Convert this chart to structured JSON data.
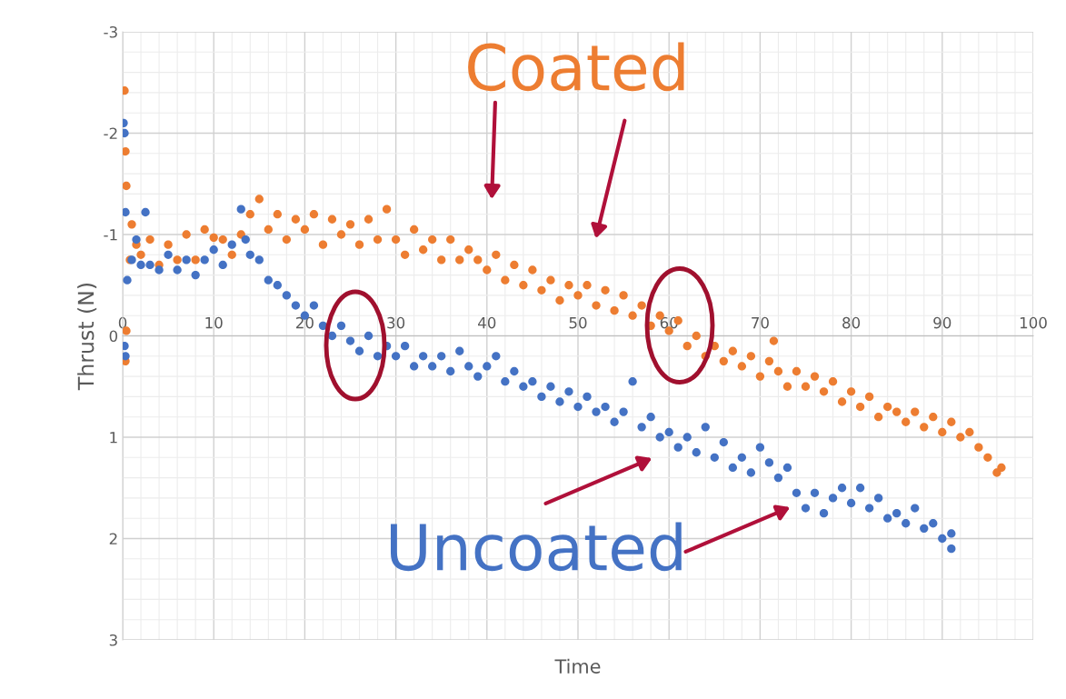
{
  "chart_data": {
    "type": "scatter",
    "xlabel": "Time",
    "ylabel": "Thrust (N)",
    "xlim": [
      0,
      100
    ],
    "xticks": [
      0,
      10,
      20,
      30,
      40,
      50,
      60,
      70,
      80,
      90,
      100
    ],
    "ylim": [
      3,
      -3
    ],
    "yticks": [
      -3,
      -2,
      -1,
      0,
      1,
      2,
      3
    ],
    "grid": true,
    "legend": false,
    "marker": "circle",
    "series": [
      {
        "name": "Coated",
        "color": "#ed7d31",
        "x": [
          0.2,
          0.3,
          0.4,
          0.3,
          0.4,
          0.8,
          1,
          1.5,
          2,
          3,
          4,
          5,
          6,
          7,
          8,
          9,
          10,
          11,
          12,
          13,
          14,
          15,
          16,
          17,
          18,
          19,
          20,
          21,
          22,
          23,
          24,
          25,
          26,
          27,
          28,
          29,
          30,
          31,
          32,
          33,
          34,
          35,
          36,
          37,
          38,
          39,
          40,
          41,
          42,
          43,
          44,
          45,
          46,
          47,
          48,
          49,
          50,
          51,
          52,
          53,
          54,
          55,
          56,
          57,
          58,
          59,
          60,
          61,
          62,
          63,
          64,
          65,
          66,
          67,
          68,
          69,
          70,
          71,
          72,
          73,
          74,
          75,
          76,
          77,
          78,
          79,
          80,
          81,
          82,
          83,
          84,
          85,
          86,
          87,
          88,
          89,
          90,
          91,
          92,
          93,
          94,
          95,
          96,
          96.5,
          71.5
        ],
        "values": [
          -2.42,
          -1.82,
          -1.48,
          0.25,
          -0.05,
          -0.75,
          -1.1,
          -0.9,
          -0.8,
          -0.95,
          -0.7,
          -0.9,
          -0.75,
          -1.0,
          -0.75,
          -1.05,
          -0.97,
          -0.95,
          -0.8,
          -1.0,
          -1.2,
          -1.35,
          -1.05,
          -1.2,
          -0.95,
          -1.15,
          -1.05,
          -1.2,
          -0.9,
          -1.15,
          -1.0,
          -1.1,
          -0.9,
          -1.15,
          -0.95,
          -1.25,
          -0.95,
          -0.8,
          -1.05,
          -0.85,
          -0.95,
          -0.75,
          -0.95,
          -0.75,
          -0.85,
          -0.75,
          -0.65,
          -0.8,
          -0.55,
          -0.7,
          -0.5,
          -0.65,
          -0.45,
          -0.55,
          -0.35,
          -0.5,
          -0.4,
          -0.5,
          -0.3,
          -0.45,
          -0.25,
          -0.4,
          -0.2,
          -0.3,
          -0.1,
          -0.2,
          -0.05,
          -0.15,
          0.1,
          0.0,
          0.2,
          0.1,
          0.25,
          0.15,
          0.3,
          0.2,
          0.4,
          0.25,
          0.35,
          0.5,
          0.35,
          0.5,
          0.4,
          0.55,
          0.45,
          0.65,
          0.55,
          0.7,
          0.6,
          0.8,
          0.7,
          0.75,
          0.85,
          0.75,
          0.9,
          0.8,
          0.95,
          0.85,
          1.0,
          0.95,
          1.1,
          1.2,
          1.35,
          1.3,
          0.05
        ]
      },
      {
        "name": "Uncoated",
        "color": "#4472c4",
        "x": [
          0.1,
          0.2,
          0.3,
          0.5,
          0.2,
          0.3,
          1,
          1.5,
          2,
          2.5,
          3,
          4,
          5,
          6,
          7,
          8,
          9,
          10,
          11,
          12,
          13,
          13.5,
          14,
          15,
          16,
          17,
          18,
          19,
          20,
          21,
          22,
          23,
          24,
          25,
          26,
          27,
          28,
          29,
          30,
          31,
          32,
          33,
          34,
          35,
          36,
          37,
          38,
          39,
          40,
          41,
          42,
          43,
          44,
          45,
          46,
          47,
          48,
          49,
          50,
          51,
          52,
          53,
          54,
          55,
          56,
          57,
          58,
          59,
          60,
          61,
          62,
          63,
          64,
          65,
          66,
          67,
          68,
          69,
          70,
          71,
          72,
          73,
          74,
          75,
          76,
          77,
          78,
          79,
          80,
          81,
          82,
          83,
          84,
          85,
          86,
          87,
          88,
          89,
          90,
          91,
          91
        ],
        "values": [
          -2.1,
          -2.0,
          -1.22,
          -0.55,
          0.1,
          0.2,
          -0.75,
          -0.95,
          -0.7,
          -1.22,
          -0.7,
          -0.65,
          -0.8,
          -0.65,
          -0.75,
          -0.6,
          -0.75,
          -0.85,
          -0.7,
          -0.9,
          -1.25,
          -0.95,
          -0.8,
          -0.75,
          -0.55,
          -0.5,
          -0.4,
          -0.3,
          -0.2,
          -0.3,
          -0.1,
          0.0,
          -0.1,
          0.05,
          0.15,
          0.0,
          0.2,
          0.1,
          0.2,
          0.1,
          0.3,
          0.2,
          0.3,
          0.2,
          0.35,
          0.15,
          0.3,
          0.4,
          0.3,
          0.2,
          0.45,
          0.35,
          0.5,
          0.45,
          0.6,
          0.5,
          0.65,
          0.55,
          0.7,
          0.6,
          0.75,
          0.7,
          0.85,
          0.75,
          0.45,
          0.9,
          0.8,
          1.0,
          0.95,
          1.1,
          1.0,
          1.15,
          0.9,
          1.2,
          1.05,
          1.3,
          1.2,
          1.35,
          1.1,
          1.25,
          1.4,
          1.3,
          1.55,
          1.7,
          1.55,
          1.75,
          1.6,
          1.5,
          1.65,
          1.5,
          1.7,
          1.6,
          1.8,
          1.75,
          1.85,
          1.7,
          1.9,
          1.85,
          2.0,
          2.1,
          1.95
        ]
      }
    ]
  }
}
